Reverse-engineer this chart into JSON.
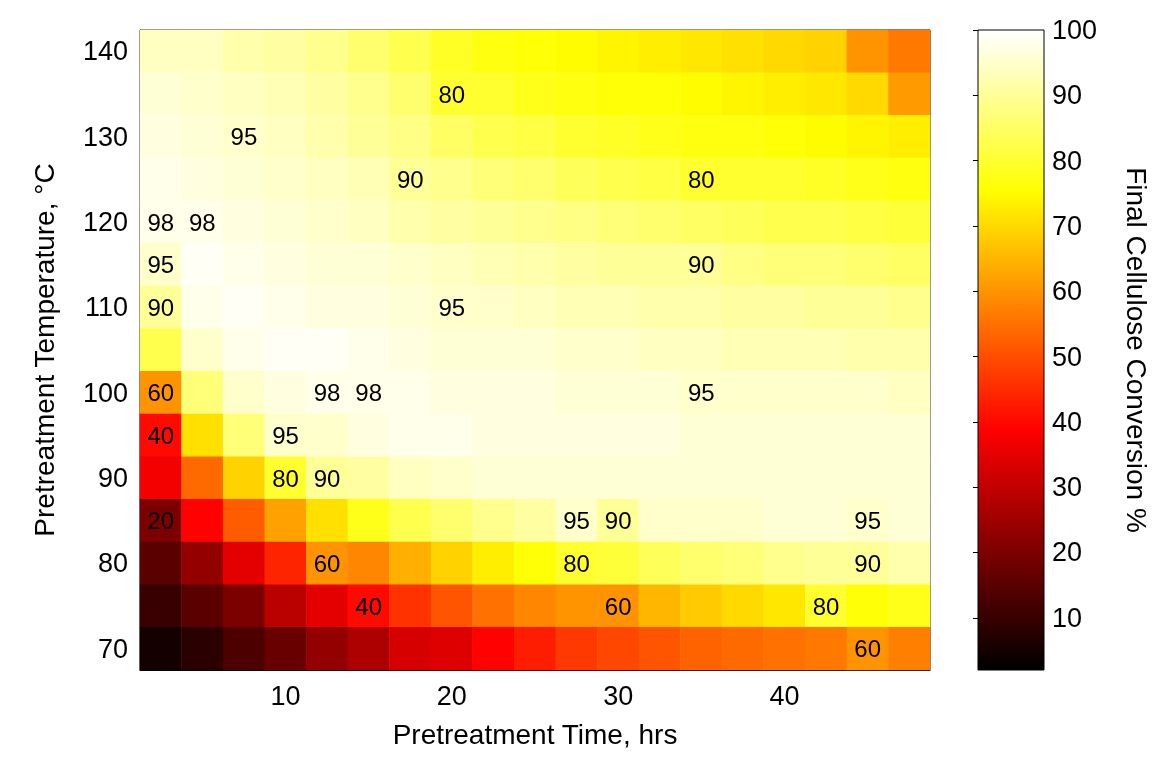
{
  "chart_data": {
    "type": "heatmap",
    "xlabel": "Pretreatment Time, hrs",
    "ylabel": "Pretreatment Temperature, °C",
    "clabel": "Final Cellulose Conversion %",
    "categories": [
      null,
      null,
      null,
      "10",
      null,
      null,
      null,
      "20",
      null,
      null,
      null,
      "30",
      null,
      null,
      null,
      "40",
      null,
      null,
      null
    ],
    "y_categories": [
      "140",
      null,
      "130",
      null,
      "120",
      null,
      "110",
      null,
      "100",
      null,
      "90",
      null,
      "80",
      null,
      "70"
    ],
    "clim": [
      2,
      100
    ],
    "cticks": [
      10,
      20,
      30,
      40,
      50,
      60,
      70,
      80,
      90,
      100
    ],
    "cells": [
      [
        94,
        94,
        92,
        91,
        89,
        86,
        83,
        79,
        77,
        76,
        75,
        74,
        73,
        72,
        71,
        70,
        69,
        60,
        56
      ],
      [
        96,
        95,
        94,
        93,
        91,
        89,
        86,
        80,
        80,
        78,
        77,
        76,
        76,
        75,
        74,
        73,
        72,
        70,
        61
      ],
      [
        97,
        96,
        95,
        94,
        92,
        90,
        88,
        85,
        83,
        82,
        80,
        79,
        78,
        77,
        77,
        76,
        75,
        74,
        73
      ],
      [
        98,
        97,
        96,
        95,
        94,
        93,
        90,
        89,
        87,
        86,
        84,
        83,
        82,
        80,
        80,
        80,
        79,
        78,
        77
      ],
      [
        98,
        98,
        97,
        96,
        95,
        94,
        92,
        91,
        90,
        89,
        88,
        87,
        86,
        85,
        84,
        83,
        83,
        82,
        81
      ],
      [
        95,
        99,
        98,
        97,
        96,
        96,
        95,
        94,
        93,
        92,
        91,
        90,
        90,
        90,
        88,
        87,
        87,
        86,
        85
      ],
      [
        90,
        98,
        99,
        98,
        97,
        97,
        96,
        95,
        95,
        94,
        93,
        93,
        92,
        92,
        91,
        91,
        90,
        90,
        89
      ],
      [
        83,
        95,
        98,
        99,
        99,
        98,
        97,
        96,
        96,
        96,
        95,
        95,
        94,
        94,
        93,
        93,
        93,
        92,
        92
      ],
      [
        60,
        87,
        95,
        97,
        98,
        98,
        98,
        97,
        97,
        97,
        96,
        96,
        96,
        95,
        95,
        95,
        95,
        95,
        94
      ],
      [
        40,
        71,
        87,
        95,
        95,
        97,
        98,
        98,
        97,
        97,
        97,
        97,
        97,
        96,
        96,
        96,
        96,
        96,
        96
      ],
      [
        37,
        54,
        69,
        80,
        90,
        91,
        94,
        95,
        96,
        96,
        96,
        96,
        96,
        96,
        96,
        96,
        96,
        96,
        96
      ],
      [
        20,
        39,
        52,
        62,
        71,
        78,
        83,
        86,
        89,
        91,
        95,
        90,
        95,
        95,
        95,
        96,
        96,
        95,
        96
      ],
      [
        15,
        23,
        35,
        44,
        60,
        58,
        64,
        69,
        73,
        76,
        80,
        81,
        84,
        86,
        87,
        89,
        90,
        90,
        92
      ],
      [
        10,
        15,
        20,
        29,
        35,
        40,
        46,
        51,
        55,
        58,
        60,
        60,
        65,
        68,
        70,
        72,
        80,
        76,
        78
      ],
      [
        5,
        8,
        13,
        17,
        23,
        27,
        33,
        34,
        39,
        43,
        47,
        49,
        51,
        53,
        54,
        55,
        56,
        60,
        57
      ]
    ],
    "cell_labels": [
      [
        null,
        null,
        null,
        null,
        null,
        null,
        null,
        null,
        null,
        null,
        null,
        null,
        null,
        null,
        null,
        null,
        null,
        null,
        null
      ],
      [
        null,
        null,
        null,
        null,
        null,
        null,
        null,
        "80",
        null,
        null,
        null,
        null,
        null,
        null,
        null,
        null,
        null,
        null,
        null
      ],
      [
        null,
        null,
        "95",
        null,
        null,
        null,
        null,
        null,
        null,
        null,
        null,
        null,
        null,
        null,
        null,
        null,
        null,
        null,
        null
      ],
      [
        null,
        null,
        null,
        null,
        null,
        null,
        "90",
        null,
        null,
        null,
        null,
        null,
        null,
        "80",
        null,
        null,
        null,
        null,
        null
      ],
      [
        "98",
        "98",
        null,
        null,
        null,
        null,
        null,
        null,
        null,
        null,
        null,
        null,
        null,
        null,
        null,
        null,
        null,
        null,
        null
      ],
      [
        "95",
        null,
        null,
        null,
        null,
        null,
        null,
        null,
        null,
        null,
        null,
        null,
        null,
        "90",
        null,
        null,
        null,
        null,
        null
      ],
      [
        "90",
        null,
        null,
        null,
        null,
        null,
        null,
        "95",
        null,
        null,
        null,
        null,
        null,
        null,
        null,
        null,
        null,
        null,
        null
      ],
      [
        null,
        null,
        null,
        null,
        null,
        null,
        null,
        null,
        null,
        null,
        null,
        null,
        null,
        null,
        null,
        null,
        null,
        null,
        null
      ],
      [
        "60",
        null,
        null,
        null,
        "98",
        "98",
        null,
        null,
        null,
        null,
        null,
        null,
        null,
        "95",
        null,
        null,
        null,
        null,
        null
      ],
      [
        "40",
        null,
        null,
        "95",
        null,
        null,
        null,
        null,
        null,
        null,
        null,
        null,
        null,
        null,
        null,
        null,
        null,
        null,
        null
      ],
      [
        null,
        null,
        null,
        "80",
        "90",
        null,
        null,
        null,
        null,
        null,
        null,
        null,
        null,
        null,
        null,
        null,
        null,
        null,
        null
      ],
      [
        "20",
        null,
        null,
        null,
        null,
        null,
        null,
        null,
        null,
        null,
        "95",
        "90",
        null,
        null,
        null,
        null,
        null,
        "95",
        null
      ],
      [
        null,
        null,
        null,
        null,
        "60",
        null,
        null,
        null,
        null,
        null,
        "80",
        null,
        null,
        null,
        null,
        null,
        null,
        "90",
        null
      ],
      [
        null,
        null,
        null,
        null,
        null,
        "40",
        null,
        null,
        null,
        null,
        null,
        "60",
        null,
        null,
        null,
        null,
        "80",
        null,
        null
      ],
      [
        null,
        null,
        null,
        null,
        null,
        null,
        null,
        null,
        null,
        null,
        null,
        null,
        null,
        null,
        null,
        null,
        null,
        "60",
        null
      ]
    ]
  }
}
